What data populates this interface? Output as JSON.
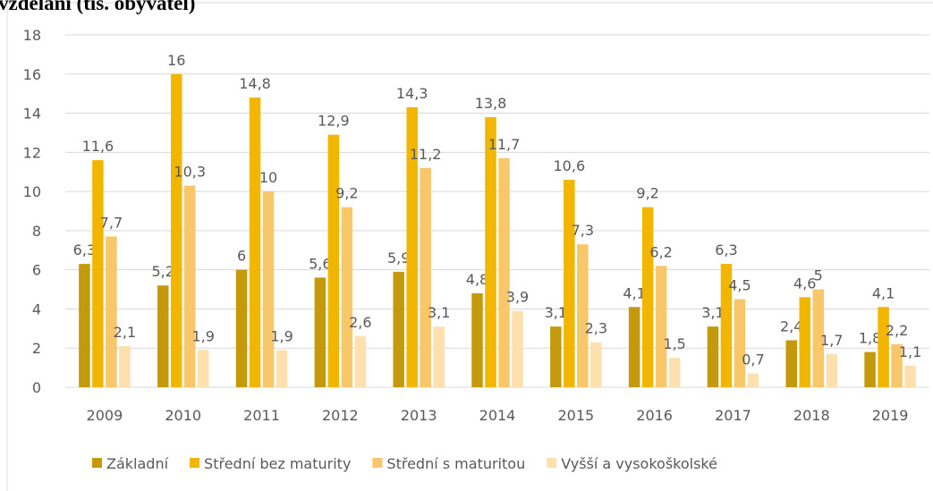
{
  "chart_data": {
    "type": "bar",
    "title": "vzdělání (tis. obyvatel)",
    "categories": [
      "2009",
      "2010",
      "2011",
      "2012",
      "2013",
      "2014",
      "2015",
      "2016",
      "2017",
      "2018",
      "2019"
    ],
    "series": [
      {
        "name": "Základní",
        "color": "#c49a0c",
        "values": [
          6.3,
          5.2,
          6,
          5.6,
          5.9,
          4.8,
          3.1,
          4.1,
          3.1,
          2.4,
          1.8
        ],
        "value_labels": [
          "6,3",
          "5,2",
          "6",
          "5,6",
          "5,9",
          "4,8",
          "3,1",
          "4,1",
          "3,1",
          "2,4",
          "1,8"
        ]
      },
      {
        "name": "Střední bez maturity",
        "color": "#f2b500",
        "values": [
          11.6,
          16,
          14.8,
          12.9,
          14.3,
          13.8,
          10.6,
          9.2,
          6.3,
          4.6,
          4.1
        ],
        "value_labels": [
          "11,6",
          "16",
          "14,8",
          "12,9",
          "14,3",
          "13,8",
          "10,6",
          "9,2",
          "6,3",
          "4,6",
          "4,1"
        ]
      },
      {
        "name": "Střední s maturitou",
        "color": "#f8c76a",
        "values": [
          7.7,
          10.3,
          10,
          9.2,
          11.2,
          11.7,
          7.3,
          6.2,
          4.5,
          5,
          2.2
        ],
        "value_labels": [
          "7,7",
          "10,3",
          "10",
          "9,2",
          "11,2",
          "11,7",
          "7,3",
          "6,2",
          "4,5",
          "5",
          "2,2"
        ]
      },
      {
        "name": "Vyšší a vysokoškolské",
        "color": "#fde0ae",
        "values": [
          2.1,
          1.9,
          1.9,
          2.6,
          3.1,
          3.9,
          2.3,
          1.5,
          0.7,
          1.7,
          1.1
        ],
        "value_labels": [
          "2,1",
          "1,9",
          "1,9",
          "2,6",
          "3,1",
          "3,9",
          "2,3",
          "1,5",
          "0,7",
          "1,7",
          "1,1"
        ]
      }
    ],
    "ylim": [
      0,
      18
    ],
    "yticks": [
      0,
      2,
      4,
      6,
      8,
      10,
      12,
      14,
      16,
      18
    ],
    "grid": true,
    "legend": "bottom"
  }
}
